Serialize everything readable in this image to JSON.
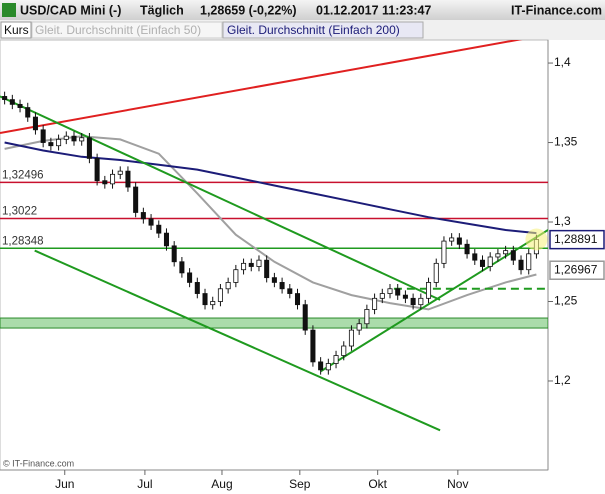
{
  "header": {
    "instrument": "USD/CAD Mini (-)",
    "interval": "Täglich",
    "quote": "1,28659 (-0,22%)",
    "datetime": "01.12.2017 11:23:47",
    "brand": "IT-Finance.com",
    "copyright": "© IT-Finance.com"
  },
  "chart_data": {
    "type": "candlestick",
    "xlim": [
      -0.6,
      70.5
    ],
    "xticks": [
      {
        "value": 7.8,
        "label": "Jun"
      },
      {
        "value": 18.2,
        "label": "Jul"
      },
      {
        "value": 28.2,
        "label": "Aug"
      },
      {
        "value": 38.3,
        "label": "Sep"
      },
      {
        "value": 48.4,
        "label": "Okt"
      },
      {
        "value": 58.8,
        "label": "Nov"
      }
    ],
    "ylim": [
      1.144,
      1.4145
    ],
    "yticks": [
      {
        "value": 1.4,
        "label": "1,4"
      },
      {
        "value": 1.35,
        "label": "1,35"
      },
      {
        "value": 1.3,
        "label": "1,3"
      },
      {
        "value": 1.25,
        "label": "1,25"
      },
      {
        "value": 1.2,
        "label": "1,2"
      }
    ],
    "series": [
      {
        "name": "Kurs",
        "color": "#111111",
        "ohlc": [
          [
            1.379,
            1.382,
            1.374,
            1.377
          ],
          [
            1.377,
            1.38,
            1.371,
            1.374
          ],
          [
            1.374,
            1.377,
            1.369,
            1.372
          ],
          [
            1.372,
            1.375,
            1.363,
            1.366
          ],
          [
            1.366,
            1.369,
            1.355,
            1.358
          ],
          [
            1.358,
            1.361,
            1.347,
            1.35
          ],
          [
            1.35,
            1.353,
            1.345,
            1.348
          ],
          [
            1.348,
            1.355,
            1.345,
            1.352
          ],
          [
            1.352,
            1.357,
            1.349,
            1.354
          ],
          [
            1.354,
            1.357,
            1.348,
            1.351
          ],
          [
            1.351,
            1.356,
            1.348,
            1.353
          ],
          [
            1.353,
            1.356,
            1.337,
            1.34
          ],
          [
            1.34,
            1.343,
            1.323,
            1.326
          ],
          [
            1.326,
            1.329,
            1.321,
            1.324
          ],
          [
            1.324,
            1.333,
            1.321,
            1.33
          ],
          [
            1.33,
            1.335,
            1.327,
            1.332
          ],
          [
            1.332,
            1.335,
            1.319,
            1.322
          ],
          [
            1.322,
            1.325,
            1.303,
            1.306
          ],
          [
            1.306,
            1.309,
            1.299,
            1.302
          ],
          [
            1.302,
            1.305,
            1.295,
            1.298
          ],
          [
            1.298,
            1.301,
            1.29,
            1.293
          ],
          [
            1.293,
            1.296,
            1.282,
            1.285
          ],
          [
            1.285,
            1.288,
            1.272,
            1.275
          ],
          [
            1.275,
            1.278,
            1.265,
            1.268
          ],
          [
            1.268,
            1.271,
            1.259,
            1.262
          ],
          [
            1.262,
            1.265,
            1.252,
            1.255
          ],
          [
            1.255,
            1.258,
            1.245,
            1.248
          ],
          [
            1.248,
            1.253,
            1.245,
            1.25
          ],
          [
            1.25,
            1.261,
            1.247,
            1.258
          ],
          [
            1.258,
            1.265,
            1.255,
            1.262
          ],
          [
            1.262,
            1.273,
            1.259,
            1.27
          ],
          [
            1.27,
            1.277,
            1.267,
            1.274
          ],
          [
            1.274,
            1.277,
            1.269,
            1.272
          ],
          [
            1.272,
            1.279,
            1.269,
            1.276
          ],
          [
            1.276,
            1.279,
            1.262,
            1.265
          ],
          [
            1.265,
            1.268,
            1.259,
            1.262
          ],
          [
            1.262,
            1.265,
            1.255,
            1.258
          ],
          [
            1.258,
            1.261,
            1.252,
            1.255
          ],
          [
            1.255,
            1.258,
            1.245,
            1.248
          ],
          [
            1.248,
            1.251,
            1.229,
            1.232
          ],
          [
            1.232,
            1.235,
            1.209,
            1.212
          ],
          [
            1.212,
            1.215,
            1.204,
            1.207
          ],
          [
            1.207,
            1.214,
            1.204,
            1.211
          ],
          [
            1.211,
            1.219,
            1.208,
            1.216
          ],
          [
            1.216,
            1.225,
            1.213,
            1.222
          ],
          [
            1.222,
            1.235,
            1.219,
            1.232
          ],
          [
            1.232,
            1.239,
            1.229,
            1.236
          ],
          [
            1.236,
            1.248,
            1.233,
            1.245
          ],
          [
            1.245,
            1.255,
            1.242,
            1.252
          ],
          [
            1.252,
            1.258,
            1.249,
            1.255
          ],
          [
            1.255,
            1.261,
            1.252,
            1.258
          ],
          [
            1.258,
            1.261,
            1.251,
            1.254
          ],
          [
            1.254,
            1.257,
            1.249,
            1.252
          ],
          [
            1.252,
            1.255,
            1.245,
            1.248
          ],
          [
            1.248,
            1.255,
            1.245,
            1.252
          ],
          [
            1.252,
            1.265,
            1.249,
            1.262
          ],
          [
            1.262,
            1.277,
            1.259,
            1.274
          ],
          [
            1.274,
            1.291,
            1.271,
            1.288
          ],
          [
            1.288,
            1.293,
            1.285,
            1.29
          ],
          [
            1.29,
            1.293,
            1.283,
            1.286
          ],
          [
            1.286,
            1.289,
            1.277,
            1.28
          ],
          [
            1.28,
            1.283,
            1.273,
            1.276
          ],
          [
            1.276,
            1.279,
            1.269,
            1.272
          ],
          [
            1.272,
            1.281,
            1.269,
            1.278
          ],
          [
            1.278,
            1.283,
            1.275,
            1.28
          ],
          [
            1.28,
            1.285,
            1.277,
            1.282
          ],
          [
            1.282,
            1.285,
            1.273,
            1.276
          ],
          [
            1.276,
            1.279,
            1.267,
            1.27
          ],
          [
            1.27,
            1.283,
            1.267,
            1.28
          ],
          [
            1.28,
            1.292,
            1.277,
            1.289
          ]
        ]
      },
      {
        "name": "Gleit. Durchschnitt (Einfach 50)",
        "color": "#a0a0a0",
        "x": [
          0,
          5,
          10,
          15,
          20,
          25,
          30,
          35,
          40,
          45,
          50,
          55,
          60,
          65,
          69
        ],
        "values": [
          1.346,
          1.351,
          1.354,
          1.352,
          1.343,
          1.318,
          1.292,
          1.275,
          1.262,
          1.254,
          1.249,
          1.245,
          1.254,
          1.262,
          1.267
        ]
      },
      {
        "name": "Gleit. Durchschnitt (Einfach 200)",
        "color": "#1c1c78",
        "x": [
          0,
          5,
          10,
          15,
          20,
          25,
          30,
          35,
          40,
          45,
          50,
          55,
          60,
          65,
          69
        ],
        "values": [
          1.35,
          1.345,
          1.341,
          1.339,
          1.336,
          1.333,
          1.328,
          1.323,
          1.318,
          1.313,
          1.308,
          1.303,
          1.299,
          1.295,
          1.293
        ]
      }
    ],
    "levels": [
      {
        "value": 1.32496,
        "label": "1,32496",
        "color": "#c8102e"
      },
      {
        "value": 1.3022,
        "label": "1,3022",
        "color": "#c8102e"
      },
      {
        "value": 1.28348,
        "label": "1,28348",
        "color": "#1f9a1f"
      }
    ],
    "band": {
      "range": [
        1.2333,
        1.2396
      ],
      "color": "#8fd08f"
    },
    "trendlines": [
      {
        "color": "#e02020",
        "x": [
          -0.6,
          70.5
        ],
        "values": [
          1.356,
          1.418
        ]
      },
      {
        "color": "#1f9a1f",
        "x": [
          -0.6,
          56.5
        ],
        "values": [
          1.379,
          1.251
        ]
      },
      {
        "color": "#1f9a1f",
        "x": [
          3.9,
          56.5
        ],
        "values": [
          1.282,
          1.169
        ]
      },
      {
        "color": "#1f9a1f",
        "x": [
          41,
          70.5
        ],
        "values": [
          1.206,
          1.295
        ]
      },
      {
        "color": "#1f9a1f",
        "x": [
          50.5,
          70.5
        ],
        "values": [
          1.258,
          1.258
        ],
        "dashed": true
      }
    ],
    "last_labels": [
      {
        "value": 1.28891,
        "label": "1,28891",
        "border": "#1c1c78"
      },
      {
        "value": 1.26967,
        "label": "1,26967",
        "border": "#999999"
      }
    ]
  }
}
